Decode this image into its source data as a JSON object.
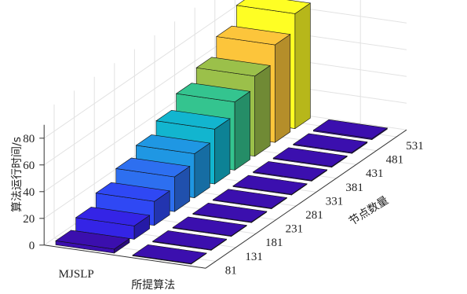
{
  "chart_data": {
    "type": "bar3d",
    "zlabel": "算法运行时间/s",
    "ylabel": "节点数量",
    "series_labels": [
      "MJSLP",
      "所提算法"
    ],
    "node_counts": [
      81,
      131,
      181,
      231,
      281,
      331,
      381,
      431,
      481,
      531
    ],
    "series": [
      {
        "name": "MJSLP",
        "values": [
          3,
          10,
          18,
          26,
          33,
          41,
          51,
          60,
          73,
          86
        ]
      },
      {
        "name": "所提算法",
        "values": [
          0.4,
          0.5,
          0.5,
          0.5,
          0.5,
          0.5,
          0.6,
          0.6,
          0.7,
          0.8
        ]
      }
    ],
    "zlim": [
      0,
      90
    ],
    "z_ticks": [
      0,
      20,
      40,
      60,
      80
    ],
    "grid": true,
    "colors": [
      "#3b0fae",
      "#3424e6",
      "#2f48f4",
      "#2d6ff0",
      "#1f97e3",
      "#12b5cf",
      "#34c48f",
      "#9bc04a",
      "#dfb83c",
      "#fcc53b",
      "#f7ea2f",
      "#fefe24"
    ]
  }
}
